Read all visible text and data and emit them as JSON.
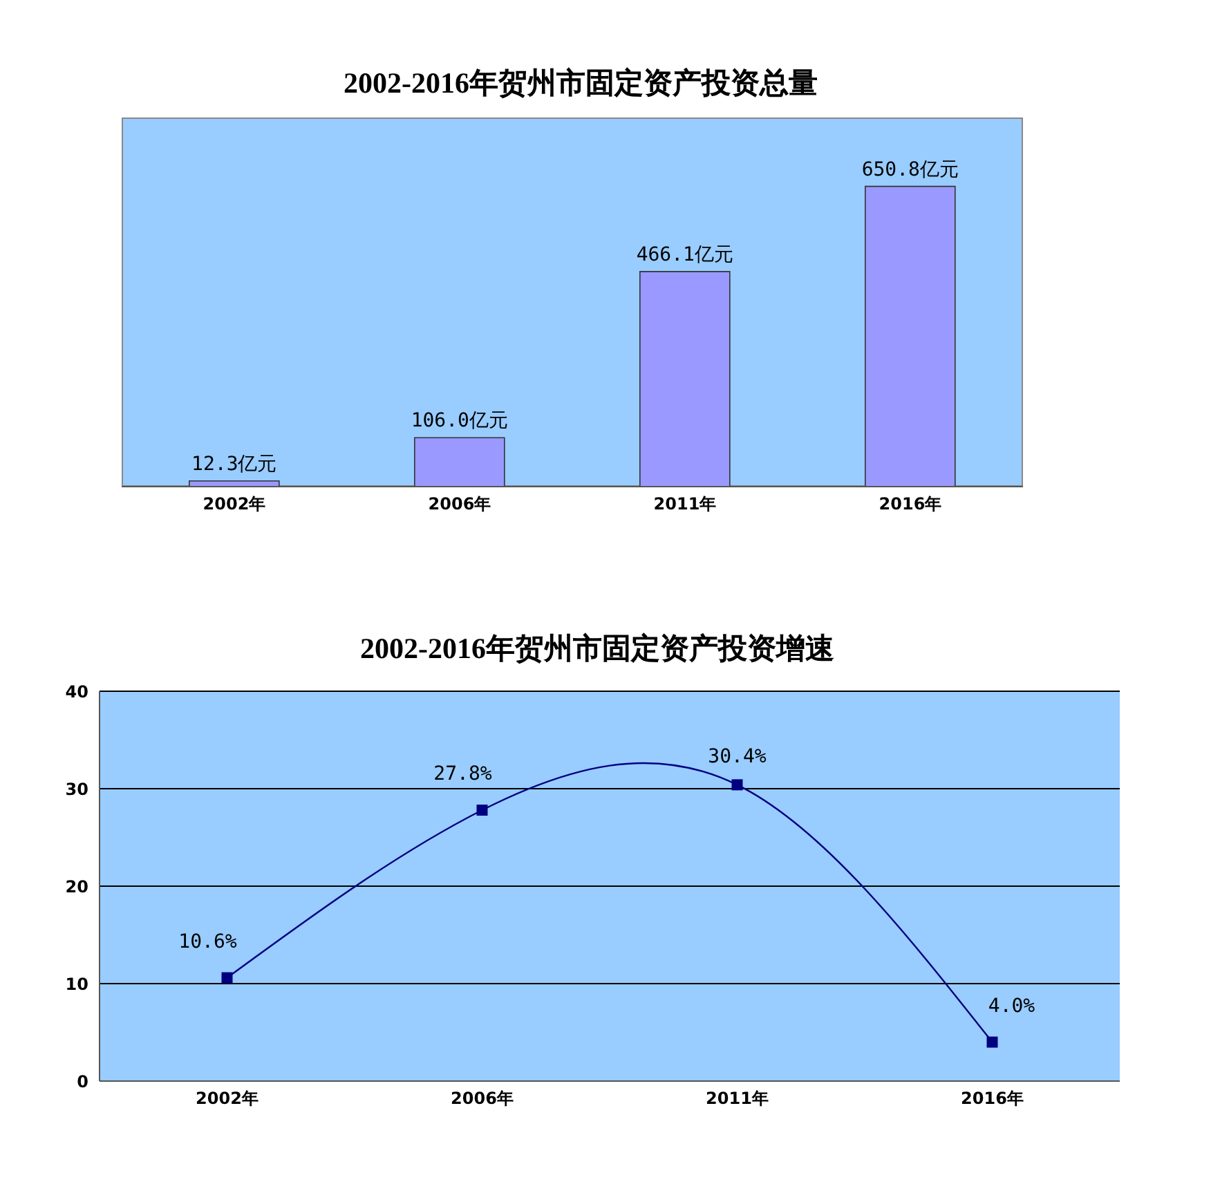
{
  "chart_data": [
    {
      "type": "bar",
      "title": "2002-2016年贺州市固定资产投资总量",
      "categories": [
        "2002年",
        "2006年",
        "2011年",
        "2016年"
      ],
      "values": [
        12.3,
        106.0,
        466.1,
        650.8
      ],
      "value_labels": [
        "12.3亿元",
        "106.0亿元",
        "466.1亿元",
        "650.8亿元"
      ],
      "color": "#9999ff",
      "tick_labels": "x"
    },
    {
      "type": "line",
      "title": "2002-2016年贺州市固定资产投资增速",
      "categories": [
        "2002年",
        "2006年",
        "2011年",
        "2016年"
      ],
      "values": [
        10.6,
        27.8,
        30.4,
        4.0
      ],
      "value_labels": [
        "10.6%",
        "27.8%",
        "30.4%",
        "4.0%"
      ],
      "color": "#000080",
      "ylim": [
        0,
        40
      ],
      "yticks": [
        0,
        10,
        20,
        30,
        40
      ],
      "grid": "y",
      "marker": "square",
      "line_style": "solid"
    }
  ]
}
